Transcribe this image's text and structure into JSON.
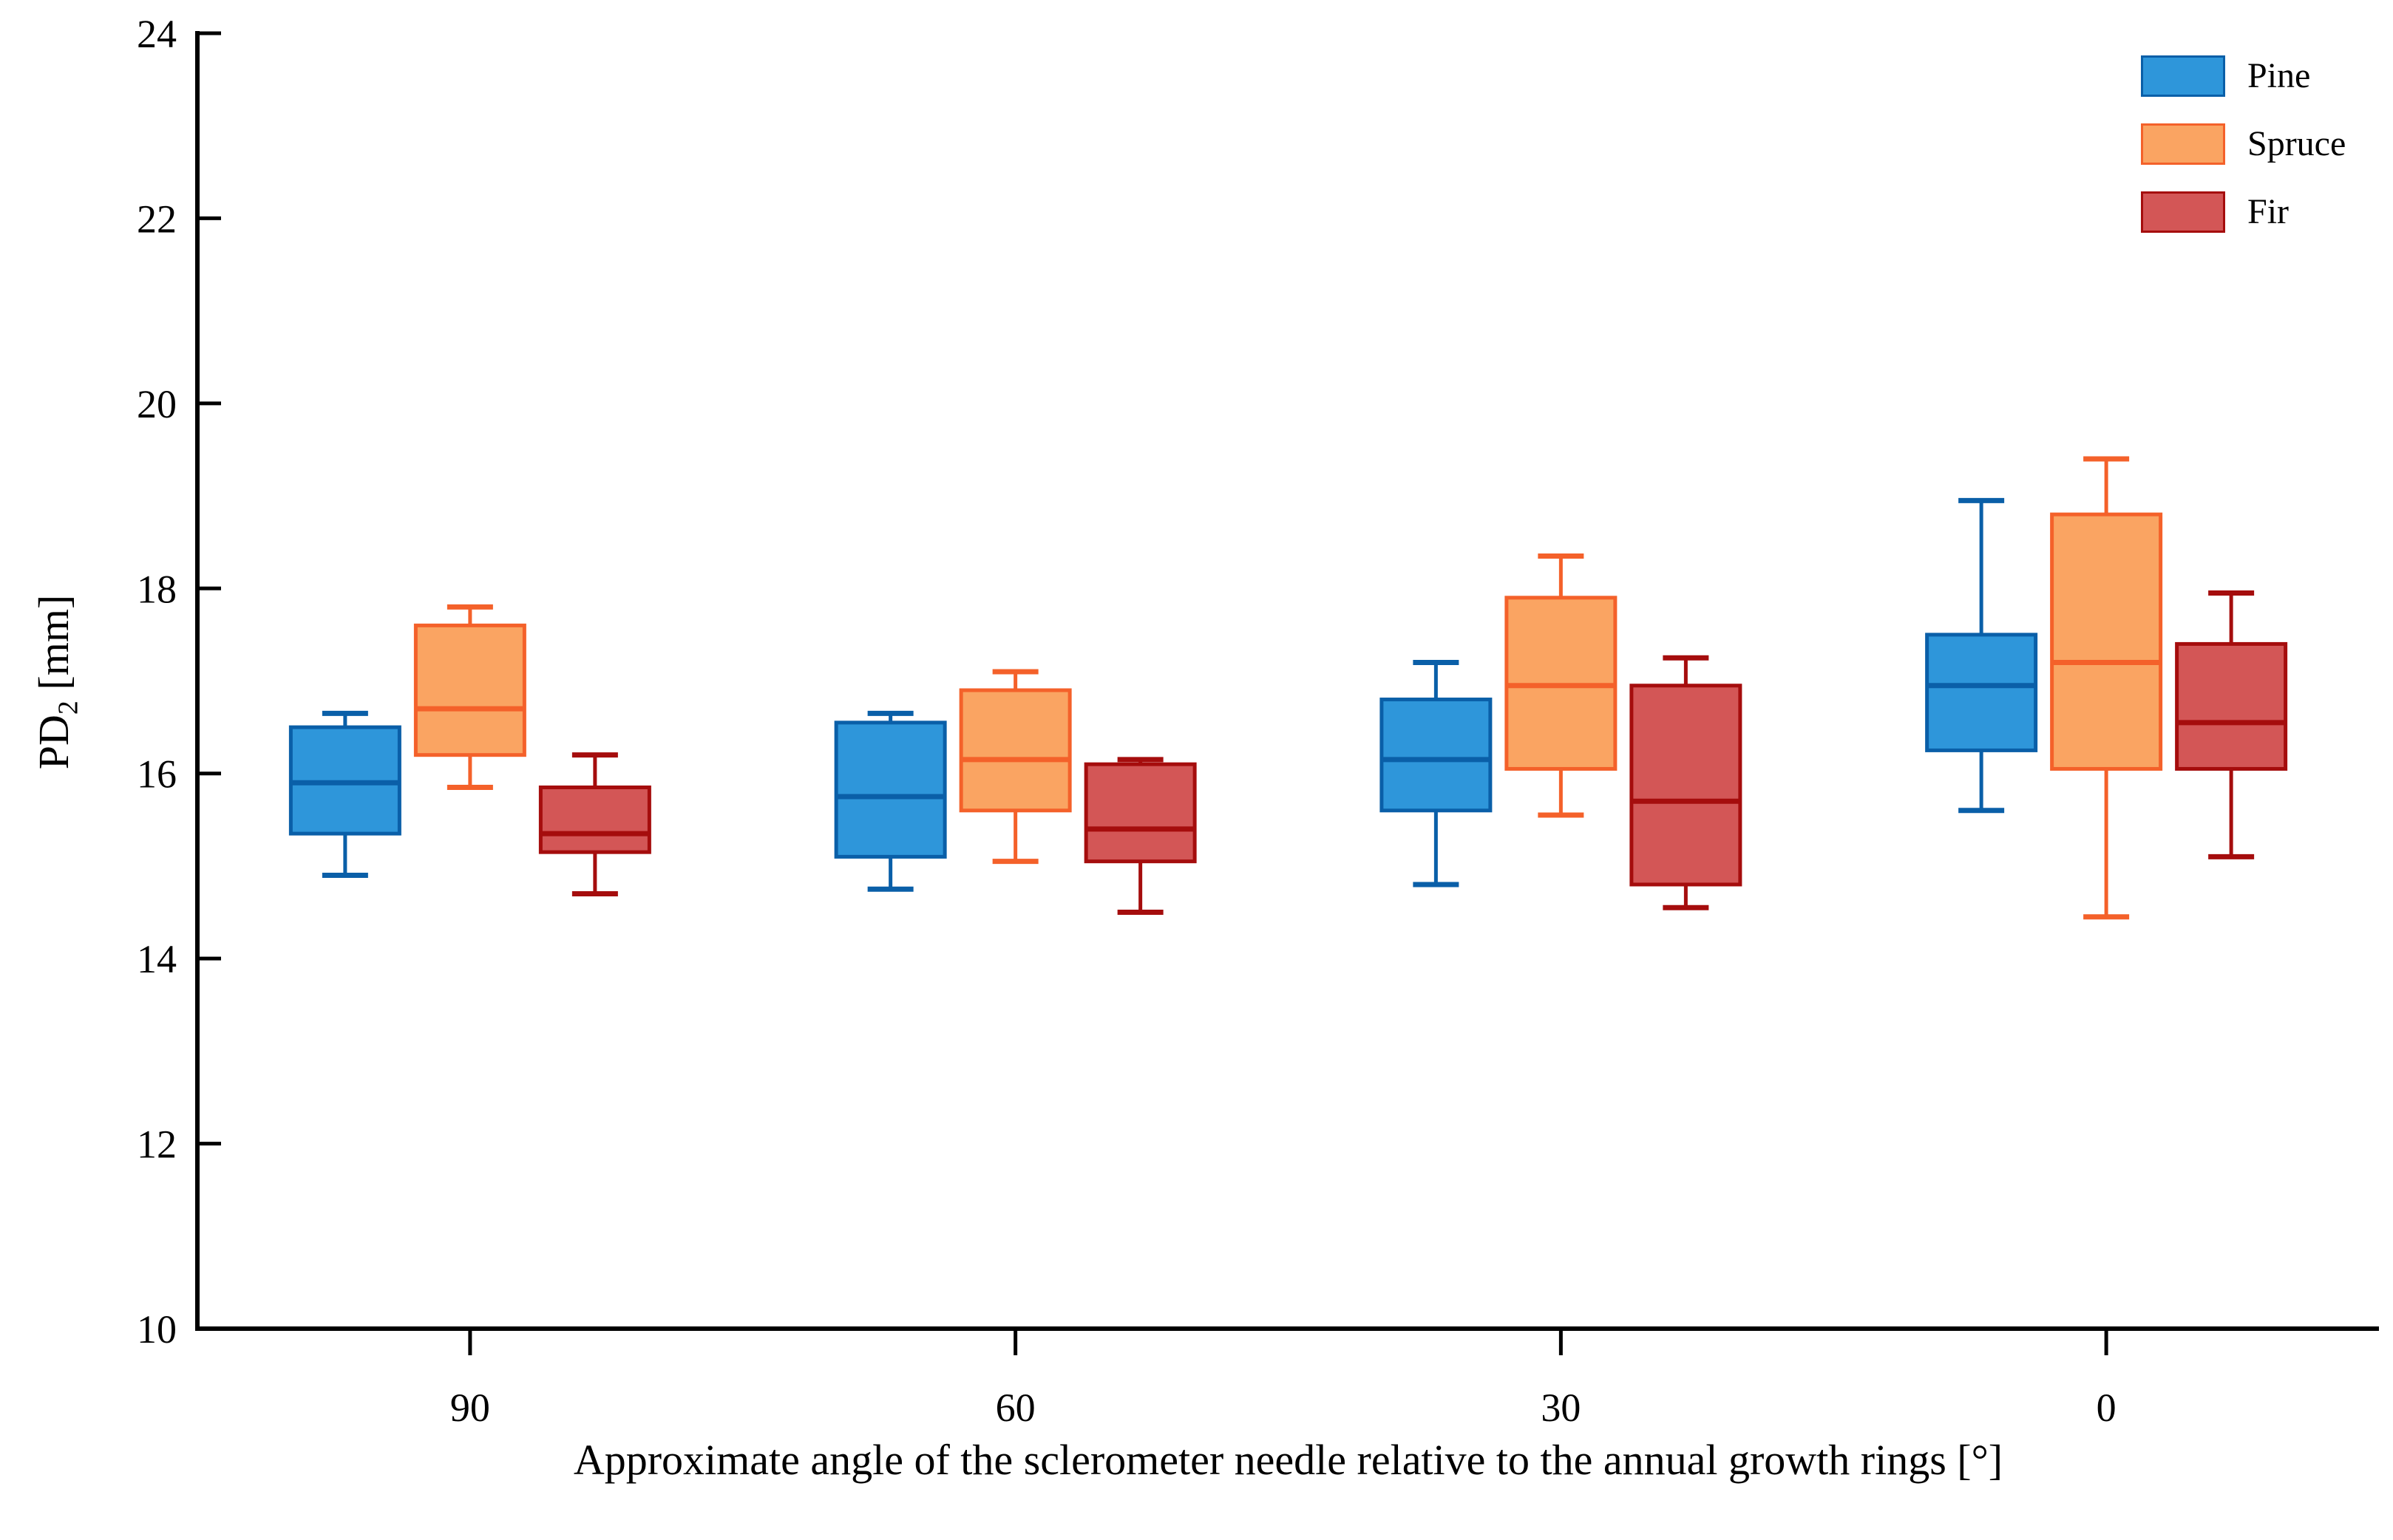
{
  "chart_data": {
    "type": "box",
    "title": "",
    "xlabel": "Approximate angle of the sclerometer needle relative to the annual growth rings [°]",
    "ylabel": {
      "pre": "PD",
      "sub": "2",
      "post": " [mm]"
    },
    "ylim": [
      10,
      24
    ],
    "yticks": [
      24,
      22,
      20,
      18,
      16,
      14,
      12,
      10
    ],
    "categories": [
      "90",
      "60",
      "30",
      "0"
    ],
    "grid": false,
    "legend_position": "top-right",
    "box_format": [
      "whisker_low",
      "q1",
      "median",
      "q3",
      "whisker_high"
    ],
    "series": [
      {
        "name": "Pine",
        "fill": "#2E96DA",
        "edge": "#0A5FA8",
        "boxes": [
          [
            14.9,
            15.35,
            15.9,
            16.5,
            16.65
          ],
          [
            14.75,
            15.1,
            15.75,
            16.55,
            16.65
          ],
          [
            14.8,
            15.6,
            16.15,
            16.8,
            17.2
          ],
          [
            15.6,
            16.25,
            16.95,
            17.5,
            18.95
          ]
        ]
      },
      {
        "name": "Spruce",
        "fill": "#FAA462",
        "edge": "#F4612A",
        "boxes": [
          [
            15.85,
            16.2,
            16.7,
            17.6,
            17.8
          ],
          [
            15.05,
            15.6,
            16.15,
            16.9,
            17.1
          ],
          [
            15.55,
            16.05,
            16.95,
            17.9,
            18.35
          ],
          [
            14.45,
            16.05,
            17.2,
            18.8,
            19.4
          ]
        ]
      },
      {
        "name": "Fir",
        "fill": "#D35656",
        "edge": "#A50D0D",
        "boxes": [
          [
            14.7,
            15.15,
            15.35,
            15.85,
            16.2
          ],
          [
            14.5,
            15.05,
            15.4,
            16.1,
            16.15
          ],
          [
            14.55,
            14.8,
            15.7,
            16.95,
            17.25
          ],
          [
            15.1,
            16.05,
            16.55,
            17.4,
            17.95
          ]
        ]
      }
    ]
  }
}
